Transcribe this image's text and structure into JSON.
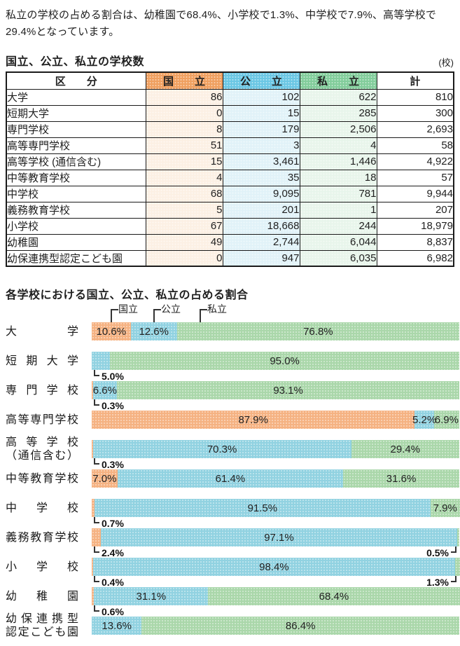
{
  "intro": {
    "text": "私立の学校の占める割合は、幼稚園で68.4%、小学校で1.3%、中学校で7.9%、高等学校で29.4%となっています。"
  },
  "colors": {
    "bar-national": "#F5B282",
    "bar-public": "#91D2E1",
    "bar-private": "#AAD7AA",
    "header-national": "#F0A060",
    "header-public": "#6BC7E4",
    "header-private": "#82CD9B",
    "cell-national": "#FCF0E4",
    "cell-public": "#E1F2F8",
    "cell-private": "#E8F5EB",
    "border": "#1A1A1A",
    "text": "#1F1F1F"
  },
  "chart_data": [
    {
      "type": "table",
      "title": "国立、公立、私立の学校数",
      "unit_note": "(校)",
      "columns": [
        "区　　分",
        "国　　立",
        "公　　立",
        "私　　立",
        "計"
      ],
      "rows": [
        {
          "label": "大学",
          "national": "86",
          "public": "102",
          "private": "622",
          "total": "810"
        },
        {
          "label": "短期大学",
          "national": "0",
          "public": "15",
          "private": "285",
          "total": "300"
        },
        {
          "label": "専門学校",
          "national": "8",
          "public": "179",
          "private": "2,506",
          "total": "2,693"
        },
        {
          "label": "高等専門学校",
          "national": "51",
          "public": "3",
          "private": "4",
          "total": "58"
        },
        {
          "label": "高等学校 (通信含む)",
          "national": "15",
          "public": "3,461",
          "private": "1,446",
          "total": "4,922"
        },
        {
          "label": "中等教育学校",
          "national": "4",
          "public": "35",
          "private": "18",
          "total": "57"
        },
        {
          "label": "中学校",
          "national": "68",
          "public": "9,095",
          "private": "781",
          "total": "9,944"
        },
        {
          "label": "義務教育学校",
          "national": "5",
          "public": "201",
          "private": "1",
          "total": "207"
        },
        {
          "label": "小学校",
          "national": "67",
          "public": "18,668",
          "private": "244",
          "total": "18,979"
        },
        {
          "label": "幼稚園",
          "national": "49",
          "public": "2,744",
          "private": "6,044",
          "total": "8,837"
        },
        {
          "label": "幼保連携型認定こども園",
          "national": "0",
          "public": "947",
          "private": "6,035",
          "total": "6,982"
        }
      ]
    },
    {
      "type": "bar",
      "variant": "horizontal-100pct-stacked",
      "title": "各学校における国立、公立、私立の占める割合",
      "unit": "%",
      "legend": [
        "国立",
        "公立",
        "私立"
      ],
      "series_names": [
        "国立",
        "公立",
        "私立"
      ],
      "rows": [
        {
          "category": "大学",
          "label_lines": [
            "大学"
          ],
          "values": {
            "national": 10.6,
            "public": 12.6,
            "private": 76.8
          },
          "seg_labels": {
            "national": "10.6%",
            "public": "12.6%",
            "private": "76.8%"
          },
          "callout_left": "",
          "callout_right": ""
        },
        {
          "category": "短期大学",
          "label_lines": [
            "短期大学"
          ],
          "values": {
            "national": 0,
            "public": 5.0,
            "private": 95.0
          },
          "seg_labels": {
            "national": "",
            "public": "",
            "private": "95.0%"
          },
          "callout_left": "5.0%",
          "callout_right": ""
        },
        {
          "category": "専門学校",
          "label_lines": [
            "専門学校"
          ],
          "values": {
            "national": 0.3,
            "public": 6.6,
            "private": 93.1
          },
          "seg_labels": {
            "national": "",
            "public": "6.6%",
            "private": "93.1%"
          },
          "callout_left": "0.3%",
          "callout_right": ""
        },
        {
          "category": "高等専門学校",
          "label_lines": [
            "高等専門学校"
          ],
          "values": {
            "national": 87.9,
            "public": 5.2,
            "private": 6.9
          },
          "seg_labels": {
            "national": "87.9%",
            "public": "5.2%",
            "private": "6.9%"
          },
          "callout_left": "",
          "callout_right": ""
        },
        {
          "category": "高等学校（通信含む）",
          "label_lines": [
            "高等学校",
            "（通信含む）"
          ],
          "values": {
            "national": 0.3,
            "public": 70.3,
            "private": 29.4
          },
          "seg_labels": {
            "national": "",
            "public": "70.3%",
            "private": "29.4%"
          },
          "callout_left": "0.3%",
          "callout_right": ""
        },
        {
          "category": "中等教育学校",
          "label_lines": [
            "中等教育学校"
          ],
          "values": {
            "national": 7.0,
            "public": 61.4,
            "private": 31.6
          },
          "seg_labels": {
            "national": "7.0%",
            "public": "61.4%",
            "private": "31.6%"
          },
          "callout_left": "",
          "callout_right": ""
        },
        {
          "category": "中学校",
          "label_lines": [
            "中学校"
          ],
          "values": {
            "national": 0.7,
            "public": 91.5,
            "private": 7.9
          },
          "seg_labels": {
            "national": "",
            "public": "91.5%",
            "private": "7.9%"
          },
          "callout_left": "0.7%",
          "callout_right": ""
        },
        {
          "category": "義務教育学校",
          "label_lines": [
            "義務教育学校"
          ],
          "values": {
            "national": 2.4,
            "public": 97.1,
            "private": 0.5
          },
          "seg_labels": {
            "national": "",
            "public": "97.1%",
            "private": ""
          },
          "callout_left": "2.4%",
          "callout_right": "0.5%"
        },
        {
          "category": "小学校",
          "label_lines": [
            "小学校"
          ],
          "values": {
            "national": 0.4,
            "public": 98.4,
            "private": 1.3
          },
          "seg_labels": {
            "national": "",
            "public": "98.4%",
            "private": ""
          },
          "callout_left": "0.4%",
          "callout_right": "1.3%"
        },
        {
          "category": "幼稚園",
          "label_lines": [
            "幼稚園"
          ],
          "values": {
            "national": 0.6,
            "public": 31.1,
            "private": 68.4
          },
          "seg_labels": {
            "national": "",
            "public": "31.1%",
            "private": "68.4%"
          },
          "callout_left": "0.6%",
          "callout_right": ""
        },
        {
          "category": "幼保連携型認定こども園",
          "label_lines": [
            "幼保連携型",
            "認定こども園"
          ],
          "values": {
            "national": 0,
            "public": 13.6,
            "private": 86.4
          },
          "seg_labels": {
            "national": "",
            "public": "13.6%",
            "private": "86.4%"
          },
          "callout_left": "",
          "callout_right": ""
        }
      ]
    }
  ]
}
